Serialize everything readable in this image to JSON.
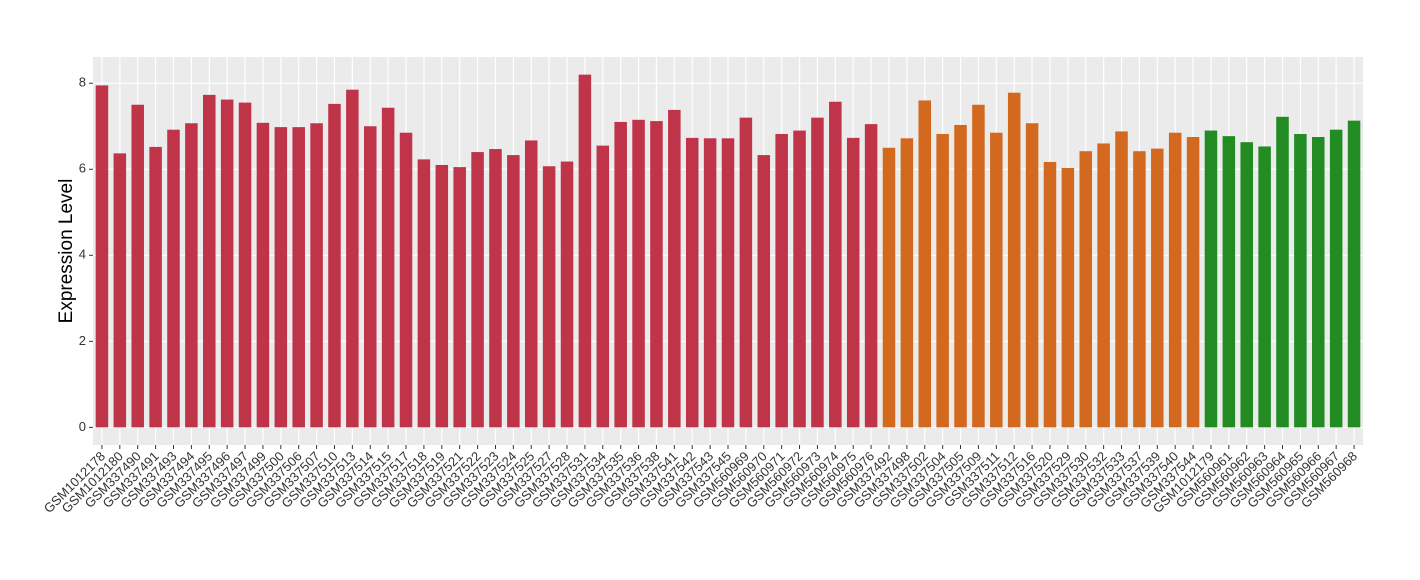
{
  "chart_data": {
    "type": "bar",
    "y_label": "Expression Level",
    "categories": [
      "GSM1012178",
      "GSM1012180",
      "GSM337490",
      "GSM337491",
      "GSM337493",
      "GSM337494",
      "GSM337495",
      "GSM337496",
      "GSM337497",
      "GSM337499",
      "GSM337500",
      "GSM337506",
      "GSM337507",
      "GSM337510",
      "GSM337513",
      "GSM337514",
      "GSM337515",
      "GSM337517",
      "GSM337518",
      "GSM337519",
      "GSM337521",
      "GSM337522",
      "GSM337523",
      "GSM337524",
      "GSM337525",
      "GSM337527",
      "GSM337528",
      "GSM337531",
      "GSM337534",
      "GSM337535",
      "GSM337536",
      "GSM337538",
      "GSM337541",
      "GSM337542",
      "GSM337543",
      "GSM337545",
      "GSM560969",
      "GSM560970",
      "GSM560971",
      "GSM560972",
      "GSM560973",
      "GSM560974",
      "GSM560975",
      "GSM560976",
      "GSM337492",
      "GSM337498",
      "GSM337502",
      "GSM337504",
      "GSM337505",
      "GSM337509",
      "GSM337511",
      "GSM337512",
      "GSM337516",
      "GSM337520",
      "GSM337529",
      "GSM337530",
      "GSM337532",
      "GSM337533",
      "GSM337537",
      "GSM337539",
      "GSM337540",
      "GSM337544",
      "GSM1012179",
      "GSM560961",
      "GSM560962",
      "GSM560963",
      "GSM560964",
      "GSM560965",
      "GSM560966",
      "GSM560967",
      "GSM560968"
    ],
    "values": [
      7.95,
      6.37,
      7.5,
      6.52,
      6.92,
      7.07,
      7.73,
      7.62,
      7.55,
      7.08,
      6.98,
      6.98,
      7.07,
      7.52,
      7.85,
      7.0,
      7.43,
      6.85,
      6.23,
      6.1,
      6.05,
      6.4,
      6.47,
      6.33,
      6.67,
      6.07,
      6.18,
      8.2,
      6.55,
      7.1,
      7.15,
      7.12,
      7.38,
      6.73,
      6.72,
      6.72,
      7.2,
      6.33,
      6.82,
      6.9,
      7.2,
      7.57,
      6.73,
      7.05,
      6.5,
      6.72,
      7.6,
      6.82,
      7.03,
      7.5,
      6.85,
      7.78,
      7.07,
      6.17,
      6.03,
      6.42,
      6.6,
      6.88,
      6.42,
      6.48,
      6.85,
      6.75,
      6.9,
      6.77,
      6.63,
      6.53,
      7.22,
      6.82,
      6.75,
      6.92,
      7.13
    ],
    "colors": [
      "#c0344a",
      "#c0344a",
      "#c0344a",
      "#c0344a",
      "#c0344a",
      "#c0344a",
      "#c0344a",
      "#c0344a",
      "#c0344a",
      "#c0344a",
      "#c0344a",
      "#c0344a",
      "#c0344a",
      "#c0344a",
      "#c0344a",
      "#c0344a",
      "#c0344a",
      "#c0344a",
      "#c0344a",
      "#c0344a",
      "#c0344a",
      "#c0344a",
      "#c0344a",
      "#c0344a",
      "#c0344a",
      "#c0344a",
      "#c0344a",
      "#c0344a",
      "#c0344a",
      "#c0344a",
      "#c0344a",
      "#c0344a",
      "#c0344a",
      "#c0344a",
      "#c0344a",
      "#c0344a",
      "#c0344a",
      "#c0344a",
      "#c0344a",
      "#c0344a",
      "#c0344a",
      "#c0344a",
      "#c0344a",
      "#c0344a",
      "#d2691e",
      "#d2691e",
      "#d2691e",
      "#d2691e",
      "#d2691e",
      "#d2691e",
      "#d2691e",
      "#d2691e",
      "#d2691e",
      "#d2691e",
      "#d2691e",
      "#d2691e",
      "#d2691e",
      "#d2691e",
      "#d2691e",
      "#d2691e",
      "#d2691e",
      "#d2691e",
      "#228b22",
      "#228b22",
      "#228b22",
      "#228b22",
      "#228b22",
      "#228b22",
      "#228b22",
      "#228b22",
      "#228b22"
    ],
    "ylim": [
      -0.41,
      8.61
    ],
    "yticks": [
      0,
      2,
      4,
      6,
      8
    ],
    "grid": true
  }
}
